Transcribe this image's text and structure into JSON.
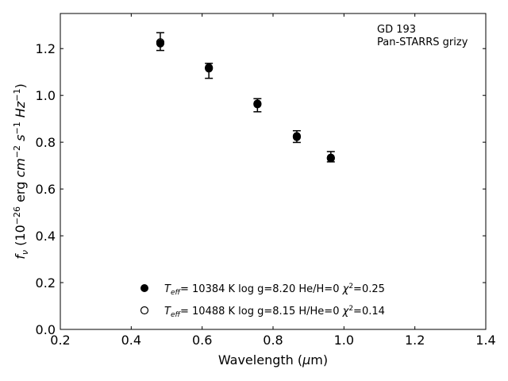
{
  "chart_data": {
    "type": "scatter",
    "title": "",
    "xlabel": "Wavelength (μm)",
    "ylabel": "f_ν (10^-26 erg cm^-2 s^-1 Hz^-1)",
    "xlim": [
      0.2,
      1.4
    ],
    "ylim": [
      0.0,
      1.35
    ],
    "xticks": [
      "0.2",
      "0.4",
      "0.6",
      "0.8",
      "1.0",
      "1.2",
      "1.4"
    ],
    "yticks": [
      "0.0",
      "0.2",
      "0.4",
      "0.6",
      "0.8",
      "1.0",
      "1.2"
    ],
    "annotations": [
      "GD 193",
      "Pan-STARRS grizy"
    ],
    "observed": {
      "x": [
        0.482,
        0.619,
        0.756,
        0.867,
        0.963
      ],
      "y": [
        1.23,
        1.105,
        0.958,
        0.824,
        0.738
      ],
      "err": [
        0.038,
        0.032,
        0.028,
        0.025,
        0.022
      ]
    },
    "series": [
      {
        "model": "filled",
        "teff": "10384",
        "logg": "8.20",
        "comp": "He/H=0",
        "chi2": "0.25",
        "x": [
          0.482,
          0.619,
          0.756,
          0.867,
          0.963
        ],
        "y": [
          1.222,
          1.115,
          0.965,
          0.826,
          0.734
        ]
      },
      {
        "model": "open",
        "teff": "10488",
        "logg": "8.15",
        "comp": "H/He=0",
        "chi2": "0.14",
        "x": [
          0.482,
          0.619,
          0.756,
          0.867,
          0.963
        ],
        "y": [
          1.227,
          1.119,
          0.962,
          0.822,
          0.731
        ]
      }
    ],
    "grid": false,
    "legend_position": "bottom-center"
  }
}
